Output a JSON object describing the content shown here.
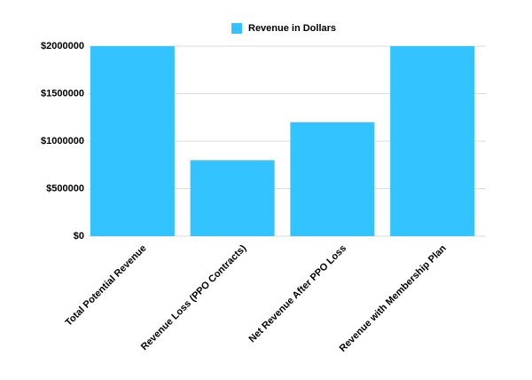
{
  "chart_data": {
    "type": "bar",
    "categories": [
      "Total Potential Revenue",
      "Revenue Loss (PPO Contracts)",
      "Net Revenue After PPO Loss",
      "Revenue with Membership Plan"
    ],
    "series": [
      {
        "name": "Revenue in Dollars",
        "color": "#33c3ff",
        "values": [
          2000000,
          800000,
          1200000,
          2000000
        ]
      }
    ],
    "ylim": [
      0,
      2000000
    ],
    "yticks": [
      {
        "value": 0,
        "label": "$0"
      },
      {
        "value": 500000,
        "label": "$500000"
      },
      {
        "value": 1000000,
        "label": "$1000000"
      },
      {
        "value": 1500000,
        "label": "$1500000"
      },
      {
        "value": 2000000,
        "label": "$2000000"
      }
    ],
    "grid": true,
    "legend": "top"
  }
}
